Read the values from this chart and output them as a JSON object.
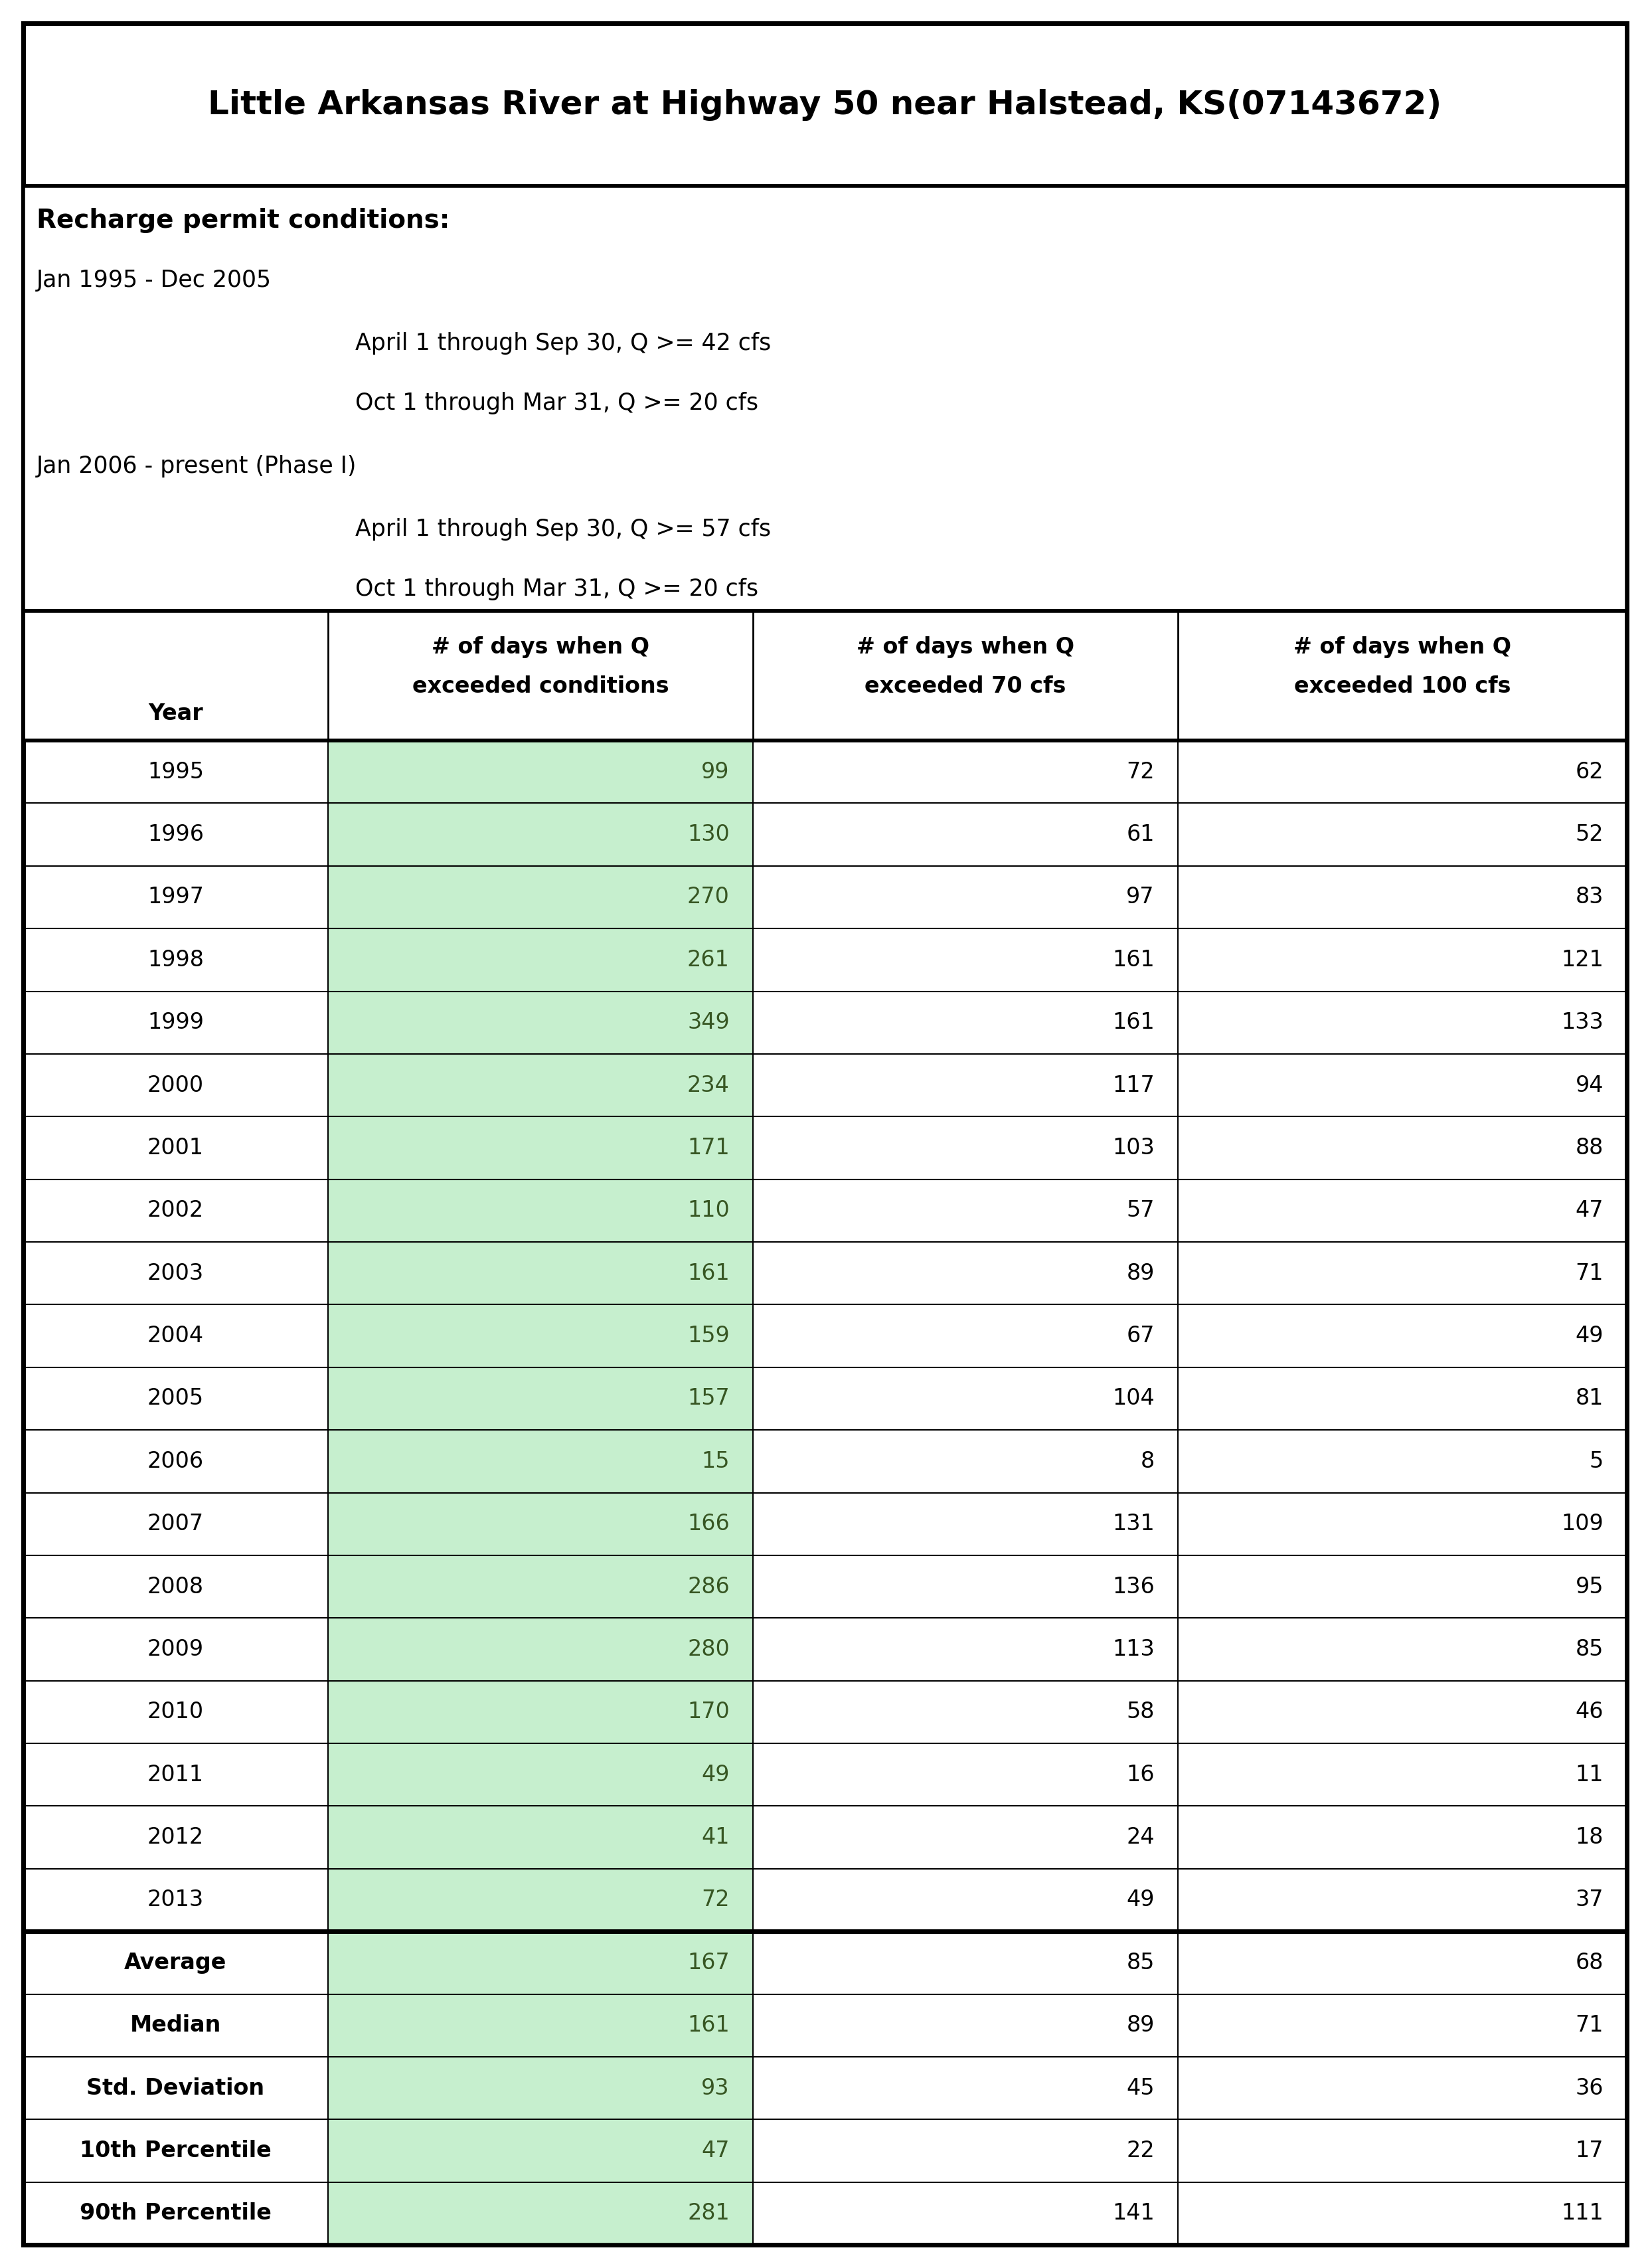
{
  "title": "Little Arkansas River at Highway 50 near Halstead, KS(07143672)",
  "permit_header": "Recharge permit conditions:",
  "period1_label": "Jan 1995 - Dec 2005",
  "period1_line1": "April 1 through Sep 30, Q >= 42 cfs",
  "period1_line2": "Oct 1 through Mar 31, Q >= 20 cfs",
  "period2_label": "Jan 2006 - present (Phase I)",
  "period2_line1": "April 1 through Sep 30, Q >= 57 cfs",
  "period2_line2": "Oct 1 through Mar 31, Q >= 20 cfs",
  "years": [
    1995,
    1996,
    1997,
    1998,
    1999,
    2000,
    2001,
    2002,
    2003,
    2004,
    2005,
    2006,
    2007,
    2008,
    2009,
    2010,
    2011,
    2012,
    2013
  ],
  "col1": [
    99,
    130,
    270,
    261,
    349,
    234,
    171,
    110,
    161,
    159,
    157,
    15,
    166,
    286,
    280,
    170,
    49,
    41,
    72
  ],
  "col2": [
    72,
    61,
    97,
    161,
    161,
    117,
    103,
    57,
    89,
    67,
    104,
    8,
    131,
    136,
    113,
    58,
    16,
    24,
    49
  ],
  "col3": [
    62,
    52,
    83,
    121,
    133,
    94,
    88,
    47,
    71,
    49,
    81,
    5,
    109,
    95,
    85,
    46,
    11,
    18,
    37
  ],
  "stat_labels": [
    "Average",
    "Median",
    "Std. Deviation",
    "10th Percentile",
    "90th Percentile"
  ],
  "stat_col1": [
    167,
    161,
    93,
    47,
    281
  ],
  "stat_col2": [
    85,
    89,
    45,
    22,
    141
  ],
  "stat_col3": [
    68,
    71,
    36,
    17,
    111
  ],
  "green_bg": "#c6efce",
  "green_text": "#375623",
  "black_text": "#000000",
  "white_bg": "#ffffff"
}
